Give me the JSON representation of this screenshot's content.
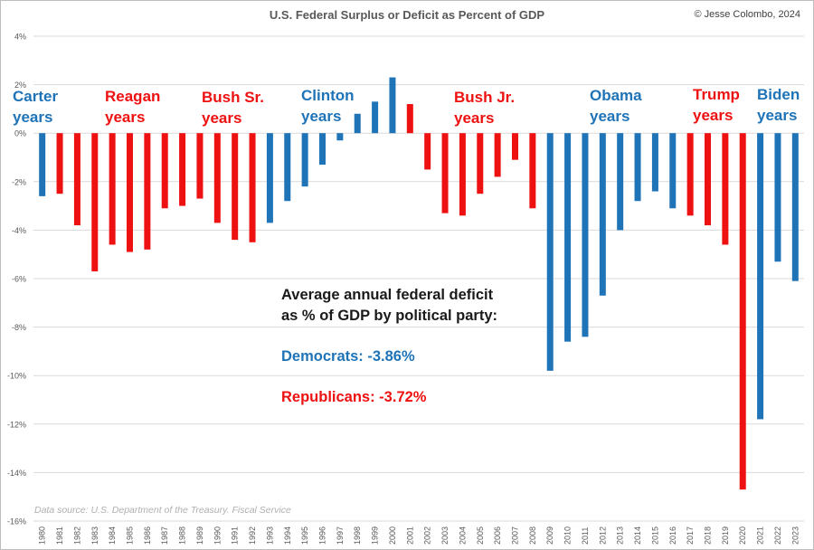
{
  "title": "U.S. Federal Surplus or Deficit as Percent of GDP",
  "copyright": "© Jesse Colombo, 2024",
  "source": "Data source: U.S. Department of the Treasury. Fiscal Service",
  "colors": {
    "democrat": "#1f73b7",
    "republican": "#ee1111",
    "grid": "#d9d9d9",
    "tick_text": "#595959"
  },
  "annotation": {
    "line1": "Average annual federal deficit",
    "line2": "as % of GDP by political party:",
    "democrats": "Democrats: -3.86%",
    "republicans": "Republicans: -3.72%"
  },
  "eras": [
    {
      "line1": "Carter",
      "line2": "years",
      "party": "D"
    },
    {
      "line1": "Reagan",
      "line2": "years",
      "party": "R"
    },
    {
      "line1": "Bush Sr.",
      "line2": "years",
      "party": "R"
    },
    {
      "line1": "Clinton",
      "line2": "years",
      "party": "D"
    },
    {
      "line1": "Bush Jr.",
      "line2": "years",
      "party": "R"
    },
    {
      "line1": "Obama",
      "line2": "years",
      "party": "D"
    },
    {
      "line1": "Trump",
      "line2": "years",
      "party": "R"
    },
    {
      "line1": "Biden",
      "line2": "years",
      "party": "D"
    }
  ],
  "chart_data": {
    "type": "bar",
    "title": "U.S. Federal Surplus or Deficit as Percent of GDP",
    "xlabel": "",
    "ylabel": "",
    "ylim": [
      -16,
      4
    ],
    "yticks": [
      4,
      2,
      0,
      -2,
      -4,
      -6,
      -8,
      -10,
      -12,
      -14,
      -16
    ],
    "ytick_labels": [
      "4%",
      "2%",
      "0%",
      "-2%",
      "-4%",
      "-6%",
      "-8%",
      "-10%",
      "-12%",
      "-14%",
      "-16%"
    ],
    "grid": true,
    "categories": [
      "1980",
      "1981",
      "1982",
      "1983",
      "1984",
      "1985",
      "1986",
      "1987",
      "1988",
      "1989",
      "1990",
      "1991",
      "1992",
      "1993",
      "1994",
      "1995",
      "1996",
      "1997",
      "1998",
      "1999",
      "2000",
      "2001",
      "2002",
      "2003",
      "2004",
      "2005",
      "2006",
      "2007",
      "2008",
      "2009",
      "2010",
      "2011",
      "2012",
      "2013",
      "2014",
      "2015",
      "2016",
      "2017",
      "2018",
      "2019",
      "2020",
      "2021",
      "2022",
      "2023"
    ],
    "values": [
      -2.6,
      -2.5,
      -3.8,
      -5.7,
      -4.6,
      -4.9,
      -4.8,
      -3.1,
      -3.0,
      -2.7,
      -3.7,
      -4.4,
      -4.5,
      -3.7,
      -2.8,
      -2.2,
      -1.3,
      -0.3,
      0.8,
      1.3,
      2.3,
      1.2,
      -1.5,
      -3.3,
      -3.4,
      -2.5,
      -1.8,
      -1.1,
      -3.1,
      -9.8,
      -8.6,
      -8.4,
      -6.7,
      -4.0,
      -2.8,
      -2.4,
      -3.1,
      -3.4,
      -3.8,
      -4.6,
      -14.7,
      -11.8,
      -5.3,
      -6.1
    ],
    "party": [
      "D",
      "R",
      "R",
      "R",
      "R",
      "R",
      "R",
      "R",
      "R",
      "R",
      "R",
      "R",
      "R",
      "D",
      "D",
      "D",
      "D",
      "D",
      "D",
      "D",
      "D",
      "R",
      "R",
      "R",
      "R",
      "R",
      "R",
      "R",
      "R",
      "D",
      "D",
      "D",
      "D",
      "D",
      "D",
      "D",
      "D",
      "R",
      "R",
      "R",
      "R",
      "D",
      "D",
      "D"
    ]
  }
}
